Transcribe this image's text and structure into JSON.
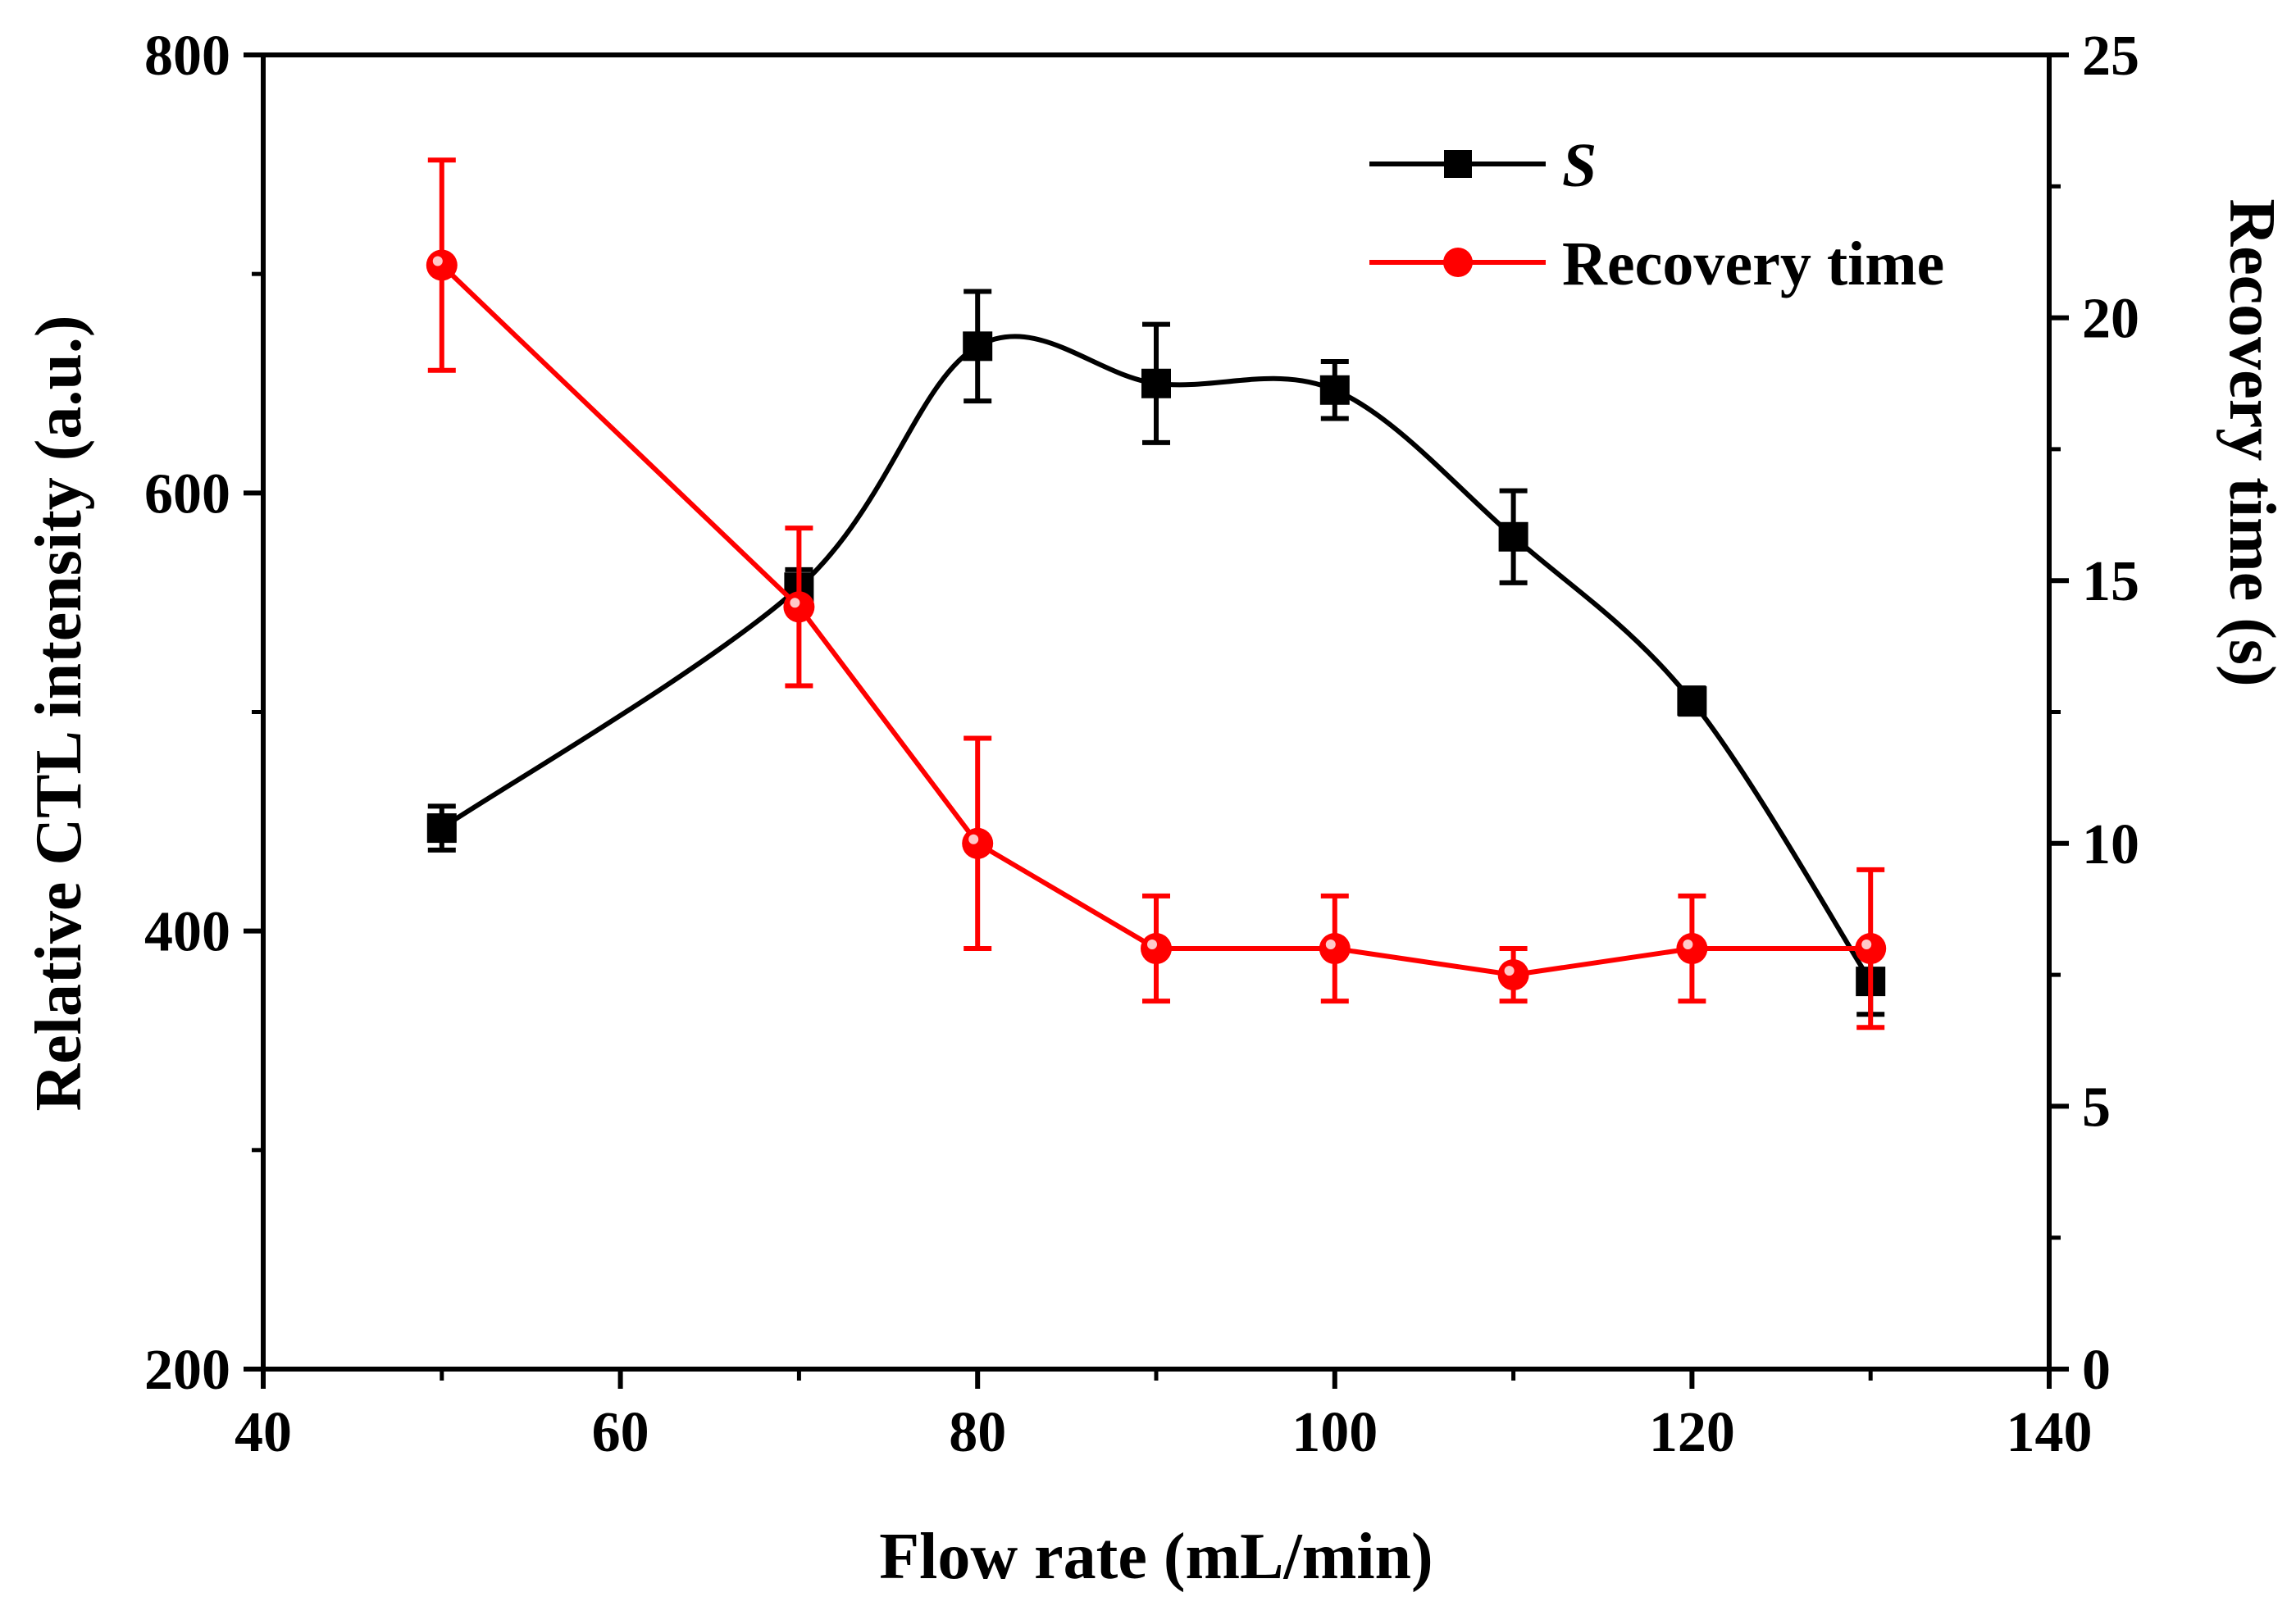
{
  "chart_data": {
    "type": "line",
    "title": "",
    "xlabel": "Flow rate (mL/min)",
    "ylabel_left": "Relative CTL intensity (a.u.)",
    "ylabel_right": "Recovery time (s)",
    "xlim": [
      40,
      140
    ],
    "ylim_left": [
      200,
      800
    ],
    "ylim_right": [
      0,
      25
    ],
    "x_ticks": [
      "40",
      "60",
      "80",
      "100",
      "120",
      "140"
    ],
    "y_left_ticks": [
      "200",
      "400",
      "600",
      "800"
    ],
    "y_right_ticks": [
      "0",
      "5",
      "10",
      "15",
      "20",
      "25"
    ],
    "legend_position": "top-right",
    "series": [
      {
        "name": "S",
        "axis": "left",
        "marker": "square",
        "color": "#000000",
        "smooth": true,
        "x": [
          50,
          70,
          80,
          90,
          100,
          110,
          120,
          130
        ],
        "values": [
          447,
          557,
          667,
          650,
          647,
          580,
          505,
          377
        ],
        "errors": [
          10,
          8,
          25,
          27,
          13,
          21,
          6,
          15
        ]
      },
      {
        "name": "Recovery time",
        "axis": "right",
        "marker": "circle",
        "color": "#ff0000",
        "smooth": false,
        "x": [
          50,
          70,
          80,
          90,
          100,
          110,
          120,
          130
        ],
        "values": [
          21.0,
          14.5,
          10.0,
          8.0,
          8.0,
          7.5,
          8.0,
          8.0
        ],
        "errors": [
          2.0,
          1.5,
          2.0,
          1.0,
          1.0,
          0.5,
          1.0,
          1.5
        ]
      }
    ]
  }
}
